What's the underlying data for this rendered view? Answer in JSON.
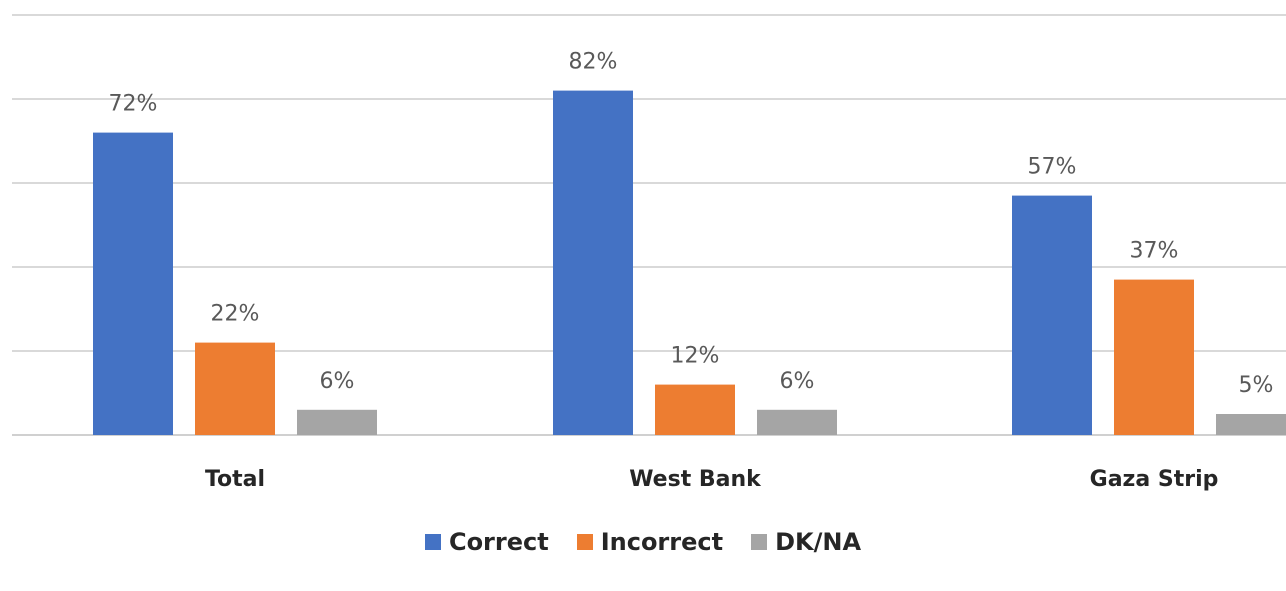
{
  "chart_data": {
    "type": "bar",
    "title": "",
    "xlabel": "",
    "ylabel": "",
    "ylim": [
      0,
      100
    ],
    "grid": true,
    "legend_position": "bottom",
    "categories": [
      "Total",
      "West Bank",
      "Gaza Strip"
    ],
    "series": [
      {
        "name": "Correct",
        "color": "#4472C4",
        "values": [
          72,
          82,
          57
        ],
        "labels": [
          "72%",
          "82%",
          "57%"
        ]
      },
      {
        "name": "Incorrect",
        "color": "#ED7D31",
        "values": [
          22,
          12,
          37
        ],
        "labels": [
          "22%",
          "12%",
          "37%"
        ]
      },
      {
        "name": "DK/NA",
        "color": "#A5A5A5",
        "values": [
          6,
          6,
          5
        ],
        "labels": [
          "6%",
          "6%",
          "5%"
        ]
      }
    ]
  }
}
